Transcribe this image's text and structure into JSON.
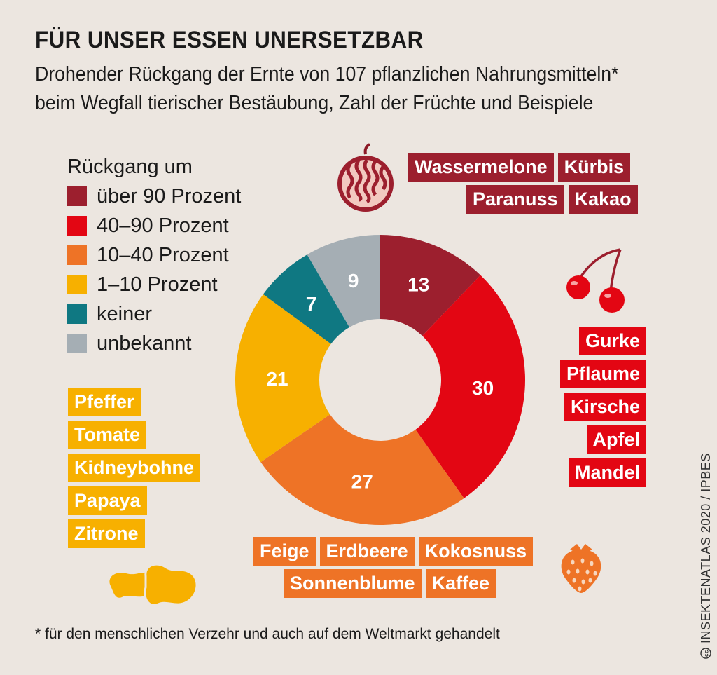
{
  "title": "FÜR UNSER ESSEN UNERSETZBAR",
  "subtitle": "Drohender Rückgang der Ernte von 107 pflanzlichen Nahrungsmitteln* beim Wegfall tierischer Bestäubung, Zahl der Früchte und Beispiele",
  "legend": {
    "title": "Rückgang um",
    "items": [
      {
        "label": "über 90 Prozent",
        "color": "#9c1f2e"
      },
      {
        "label": "40–90 Prozent",
        "color": "#e30613"
      },
      {
        "label": "10–40 Prozent",
        "color": "#ee7326"
      },
      {
        "label": "1–10 Prozent",
        "color": "#f7b000"
      },
      {
        "label": "keiner",
        "color": "#0f7882"
      },
      {
        "label": "unbekannt",
        "color": "#a5aeb4"
      }
    ]
  },
  "chart_data": {
    "type": "pie",
    "title": "FÜR UNSER ESSEN UNERSETZBAR",
    "categories": [
      "über 90 Prozent",
      "40–90 Prozent",
      "10–40 Prozent",
      "1–10 Prozent",
      "keiner",
      "unbekannt"
    ],
    "values": [
      13,
      30,
      27,
      21,
      7,
      9
    ],
    "colors": [
      "#9c1f2e",
      "#e30613",
      "#ee7326",
      "#f7b000",
      "#0f7882",
      "#a5aeb4"
    ],
    "donut": true,
    "total": 107,
    "legend_position": "left"
  },
  "examples": {
    "over90_row1": [
      "Wassermelone",
      "Kürbis"
    ],
    "over90_row2": [
      "Paranuss",
      "Kakao"
    ],
    "p40to90": [
      "Gurke",
      "Pflaume",
      "Kirsche",
      "Apfel",
      "Mandel"
    ],
    "p10to40_row1": [
      "Feige",
      "Erdbeere",
      "Kokosnuss"
    ],
    "p10to40_row2": [
      "Sonnenblume",
      "Kaffee"
    ],
    "p1to10": [
      "Pfeffer",
      "Tomate",
      "Kidneybohne",
      "Papaya",
      "Zitrone"
    ]
  },
  "icons": [
    "watermelon-icon",
    "cherries-icon",
    "strawberry-icon",
    "beans-icon",
    "creative-commons-icon"
  ],
  "footnote": "* für den menschlichen Verzehr und auch auf dem Weltmarkt gehandelt",
  "credit": "INSEKTENATLAS 2020 / IPBES"
}
